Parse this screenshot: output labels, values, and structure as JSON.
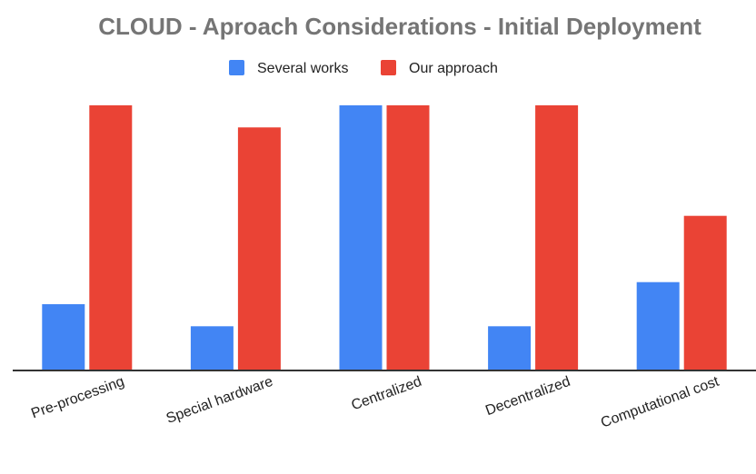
{
  "chart_data": {
    "type": "bar",
    "title": "CLOUD -  Aproach Considerations - Initial Deployment",
    "xlabel": "",
    "ylabel": "",
    "categories": [
      "Pre-processing",
      "Special hardware",
      "Centralized",
      "Decentralized",
      "Computational cost"
    ],
    "series": [
      {
        "name": "Several works",
        "color": "#4285f4",
        "values": [
          1.5,
          1,
          6,
          1,
          2
        ]
      },
      {
        "name": "Our approach",
        "color": "#ea4335",
        "values": [
          6,
          5.5,
          6,
          6,
          3.5
        ]
      }
    ],
    "ylim": [
      0,
      6
    ],
    "grid": false,
    "legend": "top-center",
    "axis_color": "#333333"
  }
}
